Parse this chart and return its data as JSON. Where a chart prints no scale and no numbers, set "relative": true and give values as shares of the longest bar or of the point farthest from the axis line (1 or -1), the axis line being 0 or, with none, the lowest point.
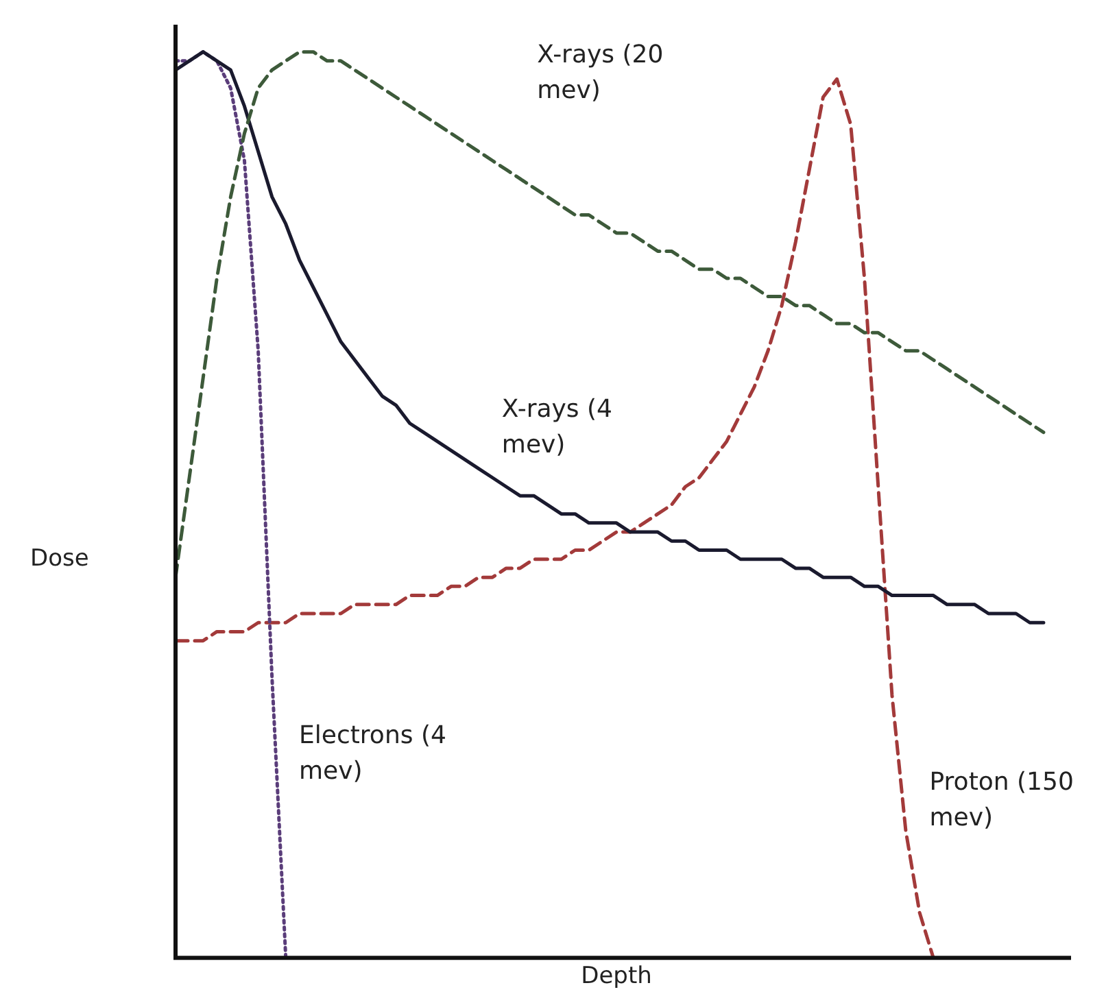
{
  "chart_data": {
    "type": "line",
    "relative": true,
    "xlabel": "Depth",
    "ylabel": "Dose",
    "grid": false,
    "legend": false,
    "marker": "none",
    "categories": [
      null,
      null,
      null,
      null,
      null,
      null,
      null,
      null,
      null,
      null,
      null,
      null,
      null,
      null,
      null,
      null,
      null,
      null,
      null,
      null,
      null,
      null,
      null,
      null,
      null,
      null,
      null,
      null,
      null,
      null,
      null,
      null,
      null,
      null,
      null,
      null,
      null,
      null,
      null,
      null,
      null,
      null,
      null,
      null,
      null,
      null,
      null,
      null,
      null,
      null,
      null,
      null,
      null,
      null,
      null,
      null,
      null,
      null,
      null,
      null,
      null,
      null,
      null,
      null,
      null
    ],
    "series": [
      {
        "name": "X-rays (20 mev)",
        "color": "#3d5a3a",
        "line_style": "dashed",
        "values": [
          0.42,
          0.53,
          0.64,
          0.75,
          0.84,
          0.91,
          0.96,
          0.98,
          0.99,
          1,
          1,
          0.99,
          0.99,
          0.98,
          0.97,
          0.96,
          0.95,
          0.94,
          0.93,
          0.92,
          0.91,
          0.9,
          0.89,
          0.88,
          0.87,
          0.86,
          0.85,
          0.84,
          0.83,
          0.82,
          0.82,
          0.81,
          0.8,
          0.8,
          0.79,
          0.78,
          0.78,
          0.77,
          0.76,
          0.76,
          0.75,
          0.75,
          0.74,
          0.73,
          0.73,
          0.72,
          0.72,
          0.71,
          0.7,
          0.7,
          0.69,
          0.69,
          0.68,
          0.67,
          0.67,
          0.66,
          0.65,
          0.64,
          0.63,
          0.62,
          0.61,
          0.6,
          0.59,
          0.58,
          null
        ]
      },
      {
        "name": "X-rays (4 mev)",
        "color": "#1a1a2e",
        "line_style": "solid",
        "values": [
          0.98,
          0.99,
          1,
          0.99,
          0.98,
          0.94,
          0.89,
          0.84,
          0.81,
          0.77,
          0.74,
          0.71,
          0.68,
          0.66,
          0.64,
          0.62,
          0.61,
          0.59,
          0.58,
          0.57,
          0.56,
          0.55,
          0.54,
          0.53,
          0.52,
          0.51,
          0.51,
          0.5,
          0.49,
          0.49,
          0.48,
          0.48,
          0.48,
          0.47,
          0.47,
          0.47,
          0.46,
          0.46,
          0.45,
          0.45,
          0.45,
          0.44,
          0.44,
          0.44,
          0.44,
          0.43,
          0.43,
          0.42,
          0.42,
          0.42,
          0.41,
          0.41,
          0.4,
          0.4,
          0.4,
          0.4,
          0.39,
          0.39,
          0.39,
          0.38,
          0.38,
          0.38,
          0.37,
          0.37,
          null
        ]
      },
      {
        "name": "Electrons (4 mev)",
        "color": "#5a3d7a",
        "line_style": "dotted",
        "values": [
          0.99,
          0.99,
          1,
          0.99,
          0.96,
          0.88,
          0.67,
          0.31,
          0,
          null,
          null,
          null,
          null,
          null,
          null,
          null,
          null,
          null,
          null,
          null,
          null,
          null,
          null,
          null,
          null,
          null,
          null,
          null,
          null,
          null,
          null,
          null,
          null,
          null,
          null,
          null,
          null,
          null,
          null,
          null,
          null,
          null,
          null,
          null,
          null,
          null,
          null,
          null,
          null,
          null,
          null,
          null,
          null,
          null,
          null,
          null,
          null,
          null,
          null,
          null,
          null,
          null,
          null,
          null,
          null
        ]
      },
      {
        "name": "Proton (150 mev)",
        "color": "#a33a3a",
        "line_style": "dashed",
        "values": [
          0.35,
          0.35,
          0.35,
          0.36,
          0.36,
          0.36,
          0.37,
          0.37,
          0.37,
          0.38,
          0.38,
          0.38,
          0.38,
          0.39,
          0.39,
          0.39,
          0.39,
          0.4,
          0.4,
          0.4,
          0.41,
          0.41,
          0.42,
          0.42,
          0.43,
          0.43,
          0.44,
          0.44,
          0.44,
          0.45,
          0.45,
          0.46,
          0.47,
          0.47,
          0.48,
          0.49,
          0.5,
          0.52,
          0.53,
          0.55,
          0.57,
          0.6,
          0.63,
          0.67,
          0.72,
          0.79,
          0.87,
          0.95,
          0.97,
          0.92,
          0.75,
          0.52,
          0.29,
          0.14,
          0.05,
          0,
          null,
          null,
          null,
          null,
          null,
          null,
          null,
          null,
          null
        ]
      }
    ]
  }
}
